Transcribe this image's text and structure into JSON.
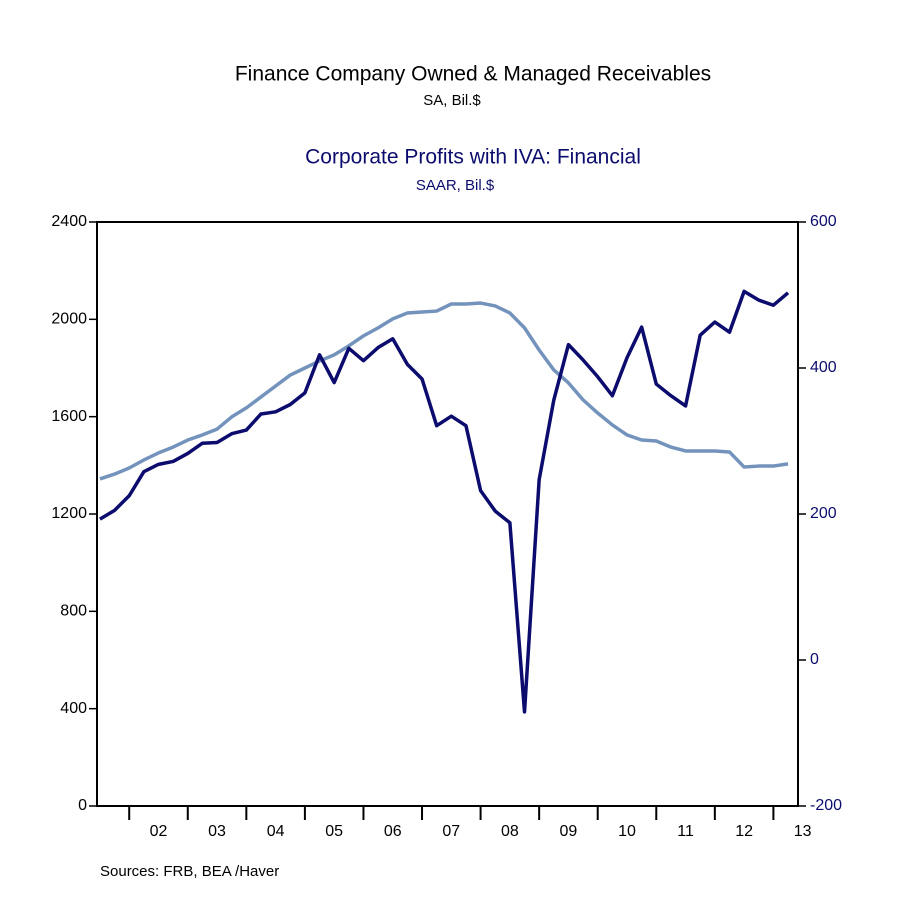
{
  "chart_data": {
    "type": "line",
    "title": "Finance Company Owned & Managed Receivables",
    "subtitle": "SA, Bil.$",
    "y2_title": "Corporate Profits with IVA: Financial",
    "y2_subtitle": "SAAR, Bil.$",
    "source": "Sources:  FRB, BEA /Haver",
    "x": [
      2001.5,
      2001.75,
      2002,
      2002.25,
      2002.5,
      2002.75,
      2003,
      2003.25,
      2003.5,
      2003.75,
      2004,
      2004.25,
      2004.5,
      2004.75,
      2005,
      2005.25,
      2005.5,
      2005.75,
      2006,
      2006.25,
      2006.5,
      2006.75,
      2007,
      2007.25,
      2007.5,
      2007.75,
      2008,
      2008.25,
      2008.5,
      2008.75,
      2009,
      2009.25,
      2009.5,
      2009.75,
      2010,
      2010.25,
      2010.5,
      2010.75,
      2011,
      2011.25,
      2011.5,
      2011.75,
      2012,
      2012.25,
      2012.5,
      2012.75,
      2013,
      2013.25
    ],
    "series": [
      {
        "name": "Finance Company Owned & Managed Receivables",
        "color": "#7393bc",
        "axis": "y",
        "values": [
          1344,
          1364,
          1389,
          1422,
          1451,
          1475,
          1504,
          1525,
          1549,
          1599,
          1636,
          1681,
          1726,
          1771,
          1800,
          1829,
          1854,
          1891,
          1932,
          1965,
          2002,
          2026,
          2030,
          2034,
          2063,
          2063,
          2067,
          2055,
          2026,
          1965,
          1874,
          1792,
          1739,
          1669,
          1615,
          1566,
          1525,
          1504,
          1500,
          1475,
          1459,
          1459,
          1459,
          1455,
          1393,
          1397,
          1397,
          1406
        ]
      },
      {
        "name": "Corporate Profits with IVA: Financial",
        "color": "#0c0c6e",
        "axis": "y2",
        "values": [
          193,
          205,
          225,
          258,
          268,
          272,
          283,
          297,
          298,
          310,
          315,
          337,
          340,
          350,
          366,
          418,
          380,
          427,
          410,
          428,
          440,
          405,
          385,
          321,
          334,
          321,
          232,
          204,
          188,
          -71,
          247,
          356,
          432,
          411,
          388,
          362,
          414,
          456,
          378,
          362,
          348,
          445,
          463,
          449,
          505,
          493,
          486,
          503
        ]
      }
    ],
    "xlim": [
      2001.45,
      2013.42
    ],
    "xticks": [
      {
        "value": 2002,
        "label": "02"
      },
      {
        "value": 2003,
        "label": "03"
      },
      {
        "value": 2004,
        "label": "04"
      },
      {
        "value": 2005,
        "label": "05"
      },
      {
        "value": 2006,
        "label": "06"
      },
      {
        "value": 2007,
        "label": "07"
      },
      {
        "value": 2008,
        "label": "08"
      },
      {
        "value": 2009,
        "label": "09"
      },
      {
        "value": 2010,
        "label": "10"
      },
      {
        "value": 2011,
        "label": "11"
      },
      {
        "value": 2012,
        "label": "12"
      },
      {
        "value": 2013,
        "label": "13"
      }
    ],
    "ylim": [
      0,
      2400
    ],
    "yticks": [
      0,
      400,
      800,
      1200,
      1600,
      2000,
      2400
    ],
    "y2lim": [
      -200,
      600
    ],
    "y2ticks": [
      -200,
      0,
      200,
      400,
      600
    ],
    "y2_color": "#0c0c6e",
    "grid": false
  }
}
